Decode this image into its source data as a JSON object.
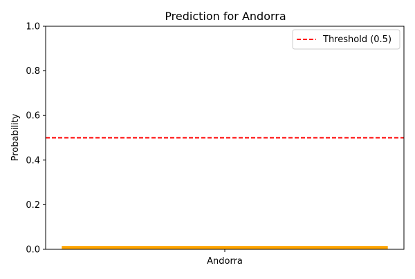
{
  "chart_data": {
    "type": "bar",
    "title": "Prediction for Andorra",
    "xlabel": "",
    "ylabel": "Probability",
    "categories": [
      "Andorra"
    ],
    "values": [
      0.015
    ],
    "ylim": [
      0,
      1
    ],
    "yticks": [
      "0.0",
      "0.2",
      "0.4",
      "0.6",
      "0.8",
      "1.0"
    ],
    "bar_color": "#ffa500",
    "threshold": {
      "value": 0.5,
      "label": "Threshold (0.5)",
      "color": "#ff0000"
    },
    "grid": false,
    "legend_position": "top-right"
  }
}
